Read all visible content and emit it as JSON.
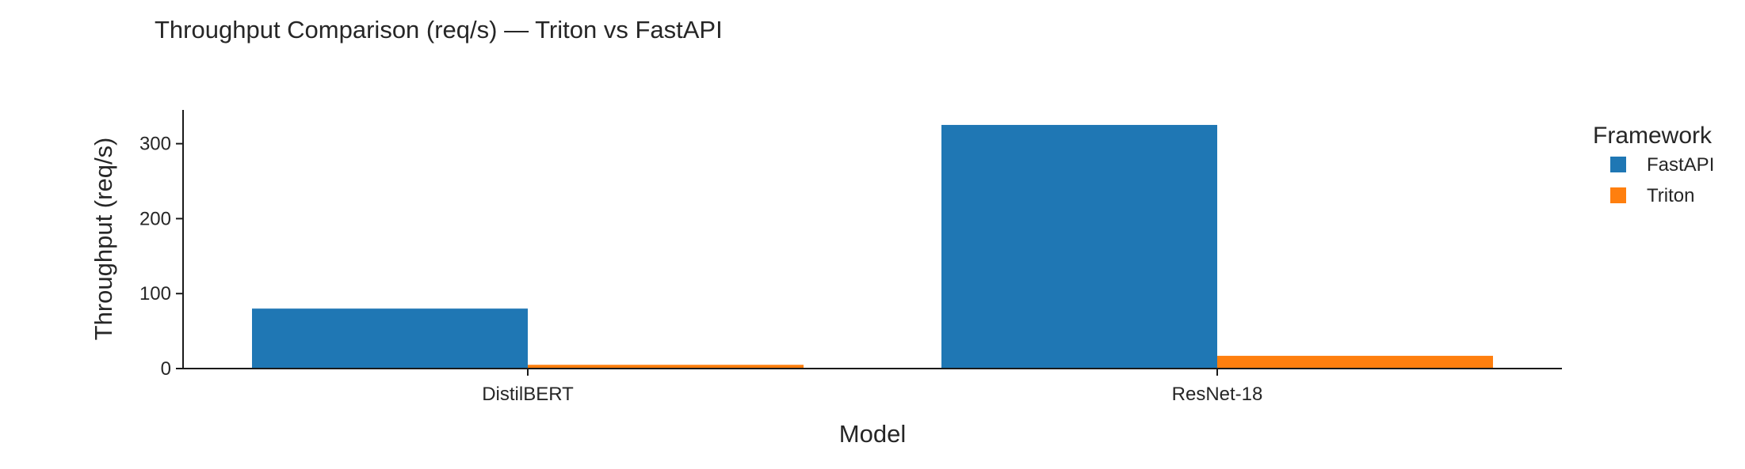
{
  "chart_data": {
    "type": "bar",
    "title": "Throughput Comparison (req/s) — Triton vs FastAPI",
    "xlabel": "Model",
    "ylabel": "Throughput (req/s)",
    "categories": [
      "DistilBERT",
      "ResNet-18"
    ],
    "series": [
      {
        "name": "FastAPI",
        "color": "#1f77b4",
        "values": [
          80,
          325
        ]
      },
      {
        "name": "Triton",
        "color": "#ff7f0e",
        "values": [
          5,
          17
        ]
      }
    ],
    "ylim": [
      0,
      345
    ],
    "yticks": [
      0,
      100,
      200,
      300
    ],
    "grid": false,
    "legend": {
      "title": "Framework",
      "placement": "right"
    }
  }
}
